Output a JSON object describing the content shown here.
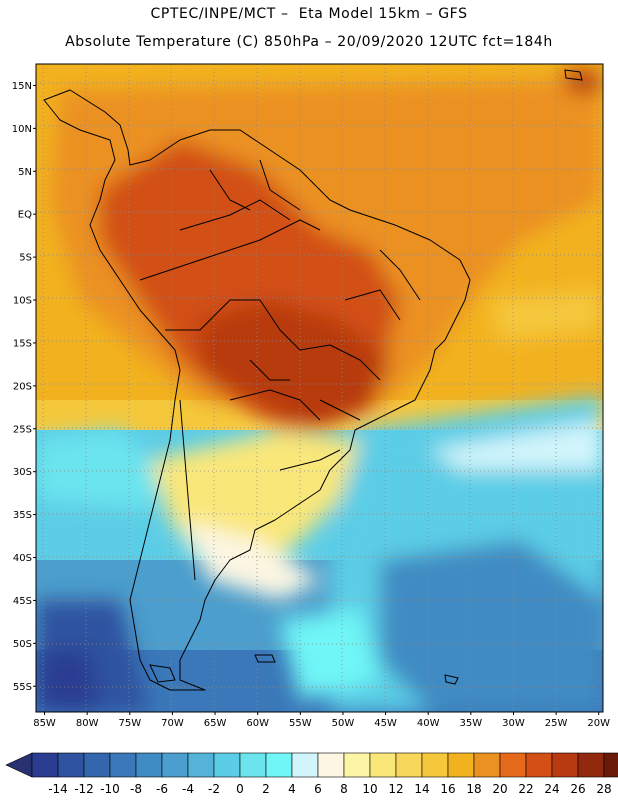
{
  "header": {
    "title_line1": "CPTEC/INPE/MCT –  Eta Model 15km – GFS",
    "title_line2": "Absolute Temperature (C) 850hPa – 20/09/2020 12UTC fct=184h"
  },
  "map": {
    "region": "South America",
    "lat_labels": [
      "15N",
      "10N",
      "5N",
      "EQ",
      "5S",
      "10S",
      "15S",
      "20S",
      "25S",
      "30S",
      "35S",
      "40S",
      "45S",
      "50S",
      "55S"
    ],
    "lon_labels": [
      "85W",
      "80W",
      "75W",
      "70W",
      "65W",
      "60W",
      "55W",
      "50W",
      "45W",
      "40W",
      "35W",
      "30W",
      "25W",
      "20W"
    ],
    "lat_values": [
      15,
      10,
      5,
      0,
      -5,
      -10,
      -15,
      -20,
      -25,
      -30,
      -35,
      -40,
      -45,
      -50,
      -55
    ],
    "lon_values": [
      -85,
      -80,
      -75,
      -70,
      -65,
      -60,
      -55,
      -50,
      -45,
      -40,
      -35,
      -30,
      -25,
      -20
    ],
    "extent": {
      "lon_min": -86,
      "lon_max": -19.5,
      "lat_min": -58,
      "lat_max": 17.5
    }
  },
  "colorbar": {
    "labels": [
      "-14",
      "-12",
      "-10",
      "-8",
      "-6",
      "-4",
      "-2",
      "0",
      "2",
      "4",
      "6",
      "8",
      "10",
      "12",
      "14",
      "16",
      "18",
      "20",
      "22",
      "24",
      "26",
      "28"
    ],
    "colors": [
      "#2a3d92",
      "#2f53a0",
      "#3466ad",
      "#3a78b9",
      "#3f8bc3",
      "#4b9ecd",
      "#55b3da",
      "#5ccde6",
      "#6be4ee",
      "#70f6f6",
      "#d2f5fb",
      "#fcf6e2",
      "#fbf5a5",
      "#f9e77a",
      "#f7d75a",
      "#f5c83c",
      "#f2b21f",
      "#eb9121",
      "#e4691b",
      "#d24f15",
      "#b83a10",
      "#92280d",
      "#6b1a0a"
    ],
    "lower_arrow_color": "#2a3172",
    "upper_arrow_color": "#7a0a2a"
  }
}
